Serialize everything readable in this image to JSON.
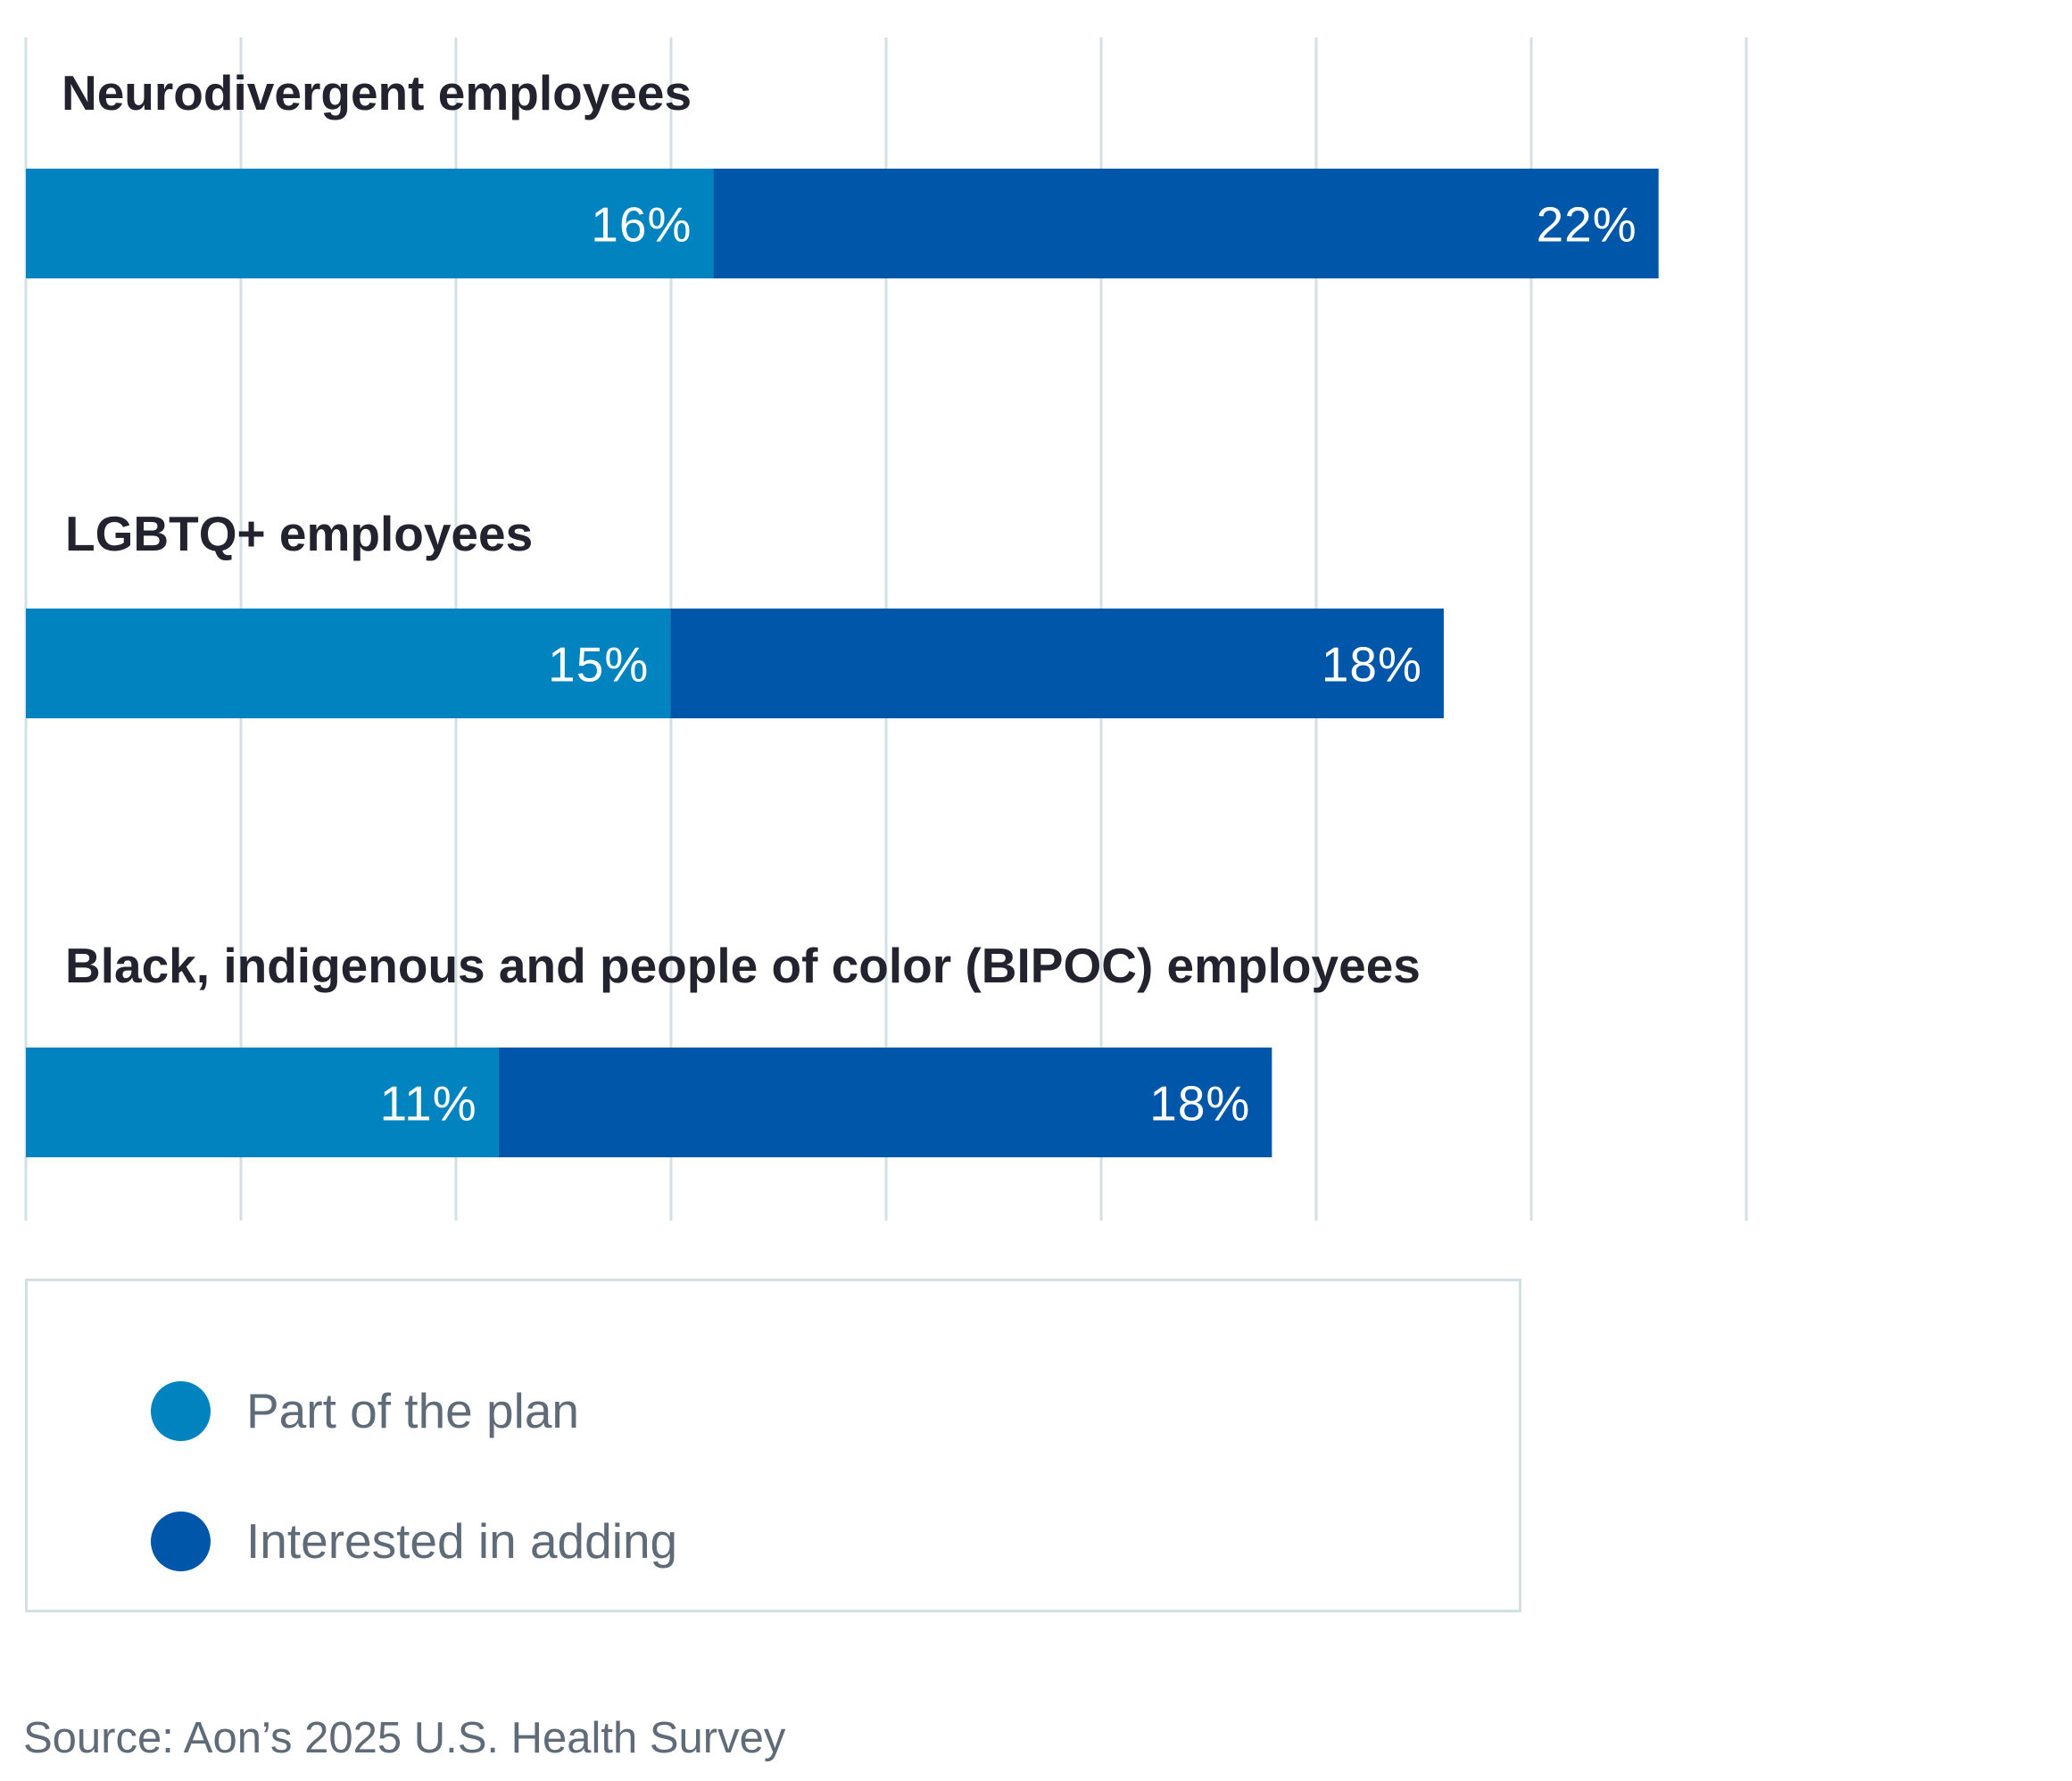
{
  "chart_data": {
    "type": "bar",
    "orientation": "horizontal",
    "stacked": true,
    "categories": [
      "Neurodivergent employees",
      "LGBTQ+ employees",
      "Black, indigenous and people of color (BIPOC) employees"
    ],
    "series": [
      {
        "name": "Part of the plan",
        "values": [
          16,
          15,
          11
        ],
        "color": "#0083be"
      },
      {
        "name": "Interested in adding",
        "values": [
          22,
          18,
          18
        ],
        "color": "#0056a8"
      }
    ],
    "data_labels": [
      [
        "16%",
        "15%",
        "11%"
      ],
      [
        "22%",
        "18%",
        "18%"
      ]
    ],
    "xlim": [
      0,
      40
    ],
    "grid": true,
    "gridline_color": "#d4dfe3",
    "legend_placement": "bottom"
  },
  "legend": {
    "items": [
      {
        "label": "Part of the plan",
        "color": "#0083be"
      },
      {
        "label": "Interested in adding",
        "color": "#0056a8"
      }
    ]
  },
  "source": "Source: Aon’s 2025 U.S. Health Survey"
}
